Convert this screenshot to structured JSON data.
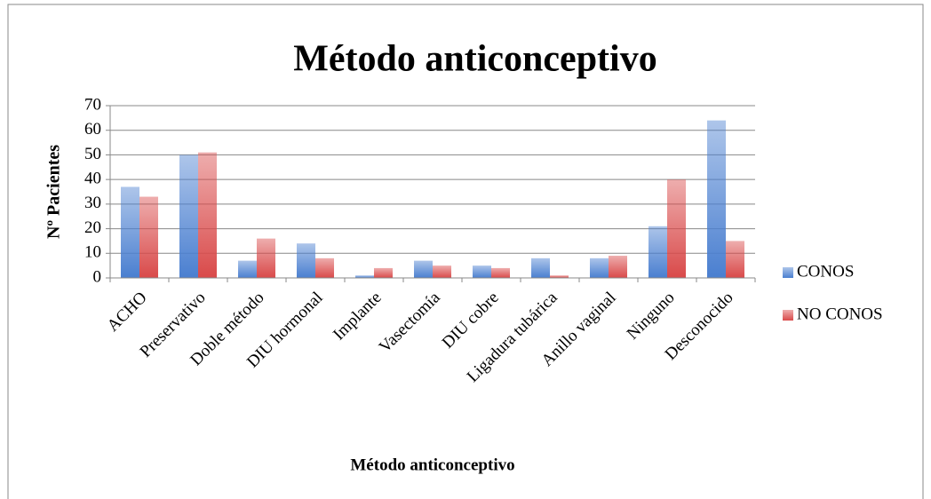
{
  "chart_data": {
    "type": "bar",
    "title": "Método anticonceptivo",
    "x_label": "Método anticonceptivo",
    "y_label": "Nº Pacientes",
    "categories": [
      "ACHO",
      "Preservativo",
      "Doble método",
      "DIU hormonal",
      "Implante",
      "Vasectomía",
      "DIU cobre",
      "Ligadura tubárica",
      "Anillo vaginal",
      "Ninguno",
      "Desconocido"
    ],
    "series": [
      {
        "name": "CONOS",
        "color": "#4a7fd0",
        "values": [
          37,
          50,
          7,
          14,
          1,
          7,
          5,
          8,
          8,
          21,
          64
        ]
      },
      {
        "name": "NO CONOS",
        "color": "#d94a4a",
        "values": [
          33,
          51,
          16,
          8,
          4,
          5,
          4,
          1,
          9,
          40,
          15
        ]
      }
    ],
    "ylim": [
      0,
      70
    ],
    "yticks": [
      0,
      10,
      20,
      30,
      40,
      50,
      60,
      70
    ],
    "grid": true,
    "legend": "right"
  }
}
